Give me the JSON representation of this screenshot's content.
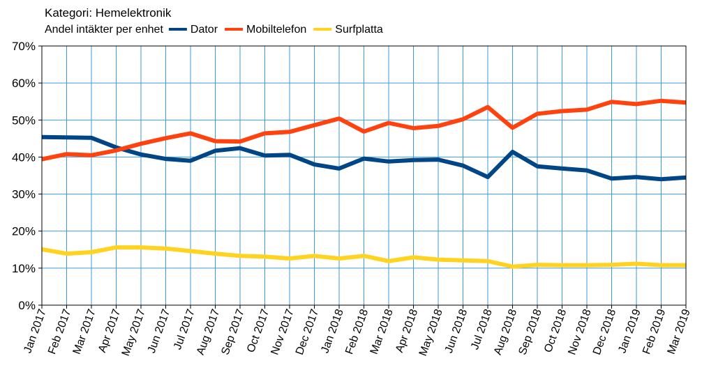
{
  "chart_data": {
    "type": "line",
    "title": "Kategori: Hemelektronik",
    "subtitle": "Andel intäkter per enhet",
    "xlabel": "",
    "ylabel": "",
    "ylim": [
      0,
      70
    ],
    "y_ticks": [
      0,
      10,
      20,
      30,
      40,
      50,
      60,
      70
    ],
    "y_tick_labels": [
      "0%",
      "10%",
      "20%",
      "30%",
      "40%",
      "50%",
      "60%",
      "70%"
    ],
    "grid": true,
    "legend_position": "top",
    "categories": [
      "Jan 2017",
      "Feb 2017",
      "Mar 2017",
      "Apr 2017",
      "May 2017",
      "Jun 2017",
      "Jul 2017",
      "Aug 2017",
      "Sep 2017",
      "Oct 2017",
      "Nov 2017",
      "Dec 2017",
      "Jan 2018",
      "Feb 2018",
      "Mar 2018",
      "Apr 2018",
      "May 2018",
      "Jun 2018",
      "Jul 2018",
      "Aug 2018",
      "Sep 2018",
      "Oct 2018",
      "Nov 2018",
      "Dec 2018",
      "Jan 2019",
      "Feb 2019",
      "Mar 2019"
    ],
    "series": [
      {
        "name": "Dator",
        "color": "#004586",
        "values": [
          45.4,
          45.3,
          45.2,
          42.6,
          40.7,
          39.5,
          39.0,
          41.7,
          42.4,
          40.4,
          40.6,
          38.0,
          36.9,
          39.6,
          38.8,
          39.2,
          39.3,
          37.7,
          34.6,
          41.4,
          37.5,
          36.9,
          36.4,
          34.2,
          34.6,
          34.0,
          34.5
        ]
      },
      {
        "name": "Mobiltelefon",
        "color": "#ff420e",
        "values": [
          39.4,
          40.8,
          40.5,
          41.8,
          43.6,
          45.1,
          46.4,
          44.3,
          44.2,
          46.4,
          46.8,
          48.6,
          50.4,
          46.9,
          49.2,
          47.8,
          48.4,
          50.2,
          53.5,
          47.9,
          51.7,
          52.4,
          52.8,
          54.9,
          54.3,
          55.2,
          54.7
        ]
      },
      {
        "name": "Surfplatta",
        "color": "#ffd320",
        "values": [
          15.1,
          13.9,
          14.3,
          15.6,
          15.6,
          15.3,
          14.6,
          13.9,
          13.3,
          13.1,
          12.6,
          13.3,
          12.6,
          13.3,
          11.9,
          12.9,
          12.3,
          12.1,
          11.9,
          10.4,
          10.9,
          10.8,
          10.8,
          10.9,
          11.2,
          10.8,
          10.8
        ]
      }
    ]
  }
}
